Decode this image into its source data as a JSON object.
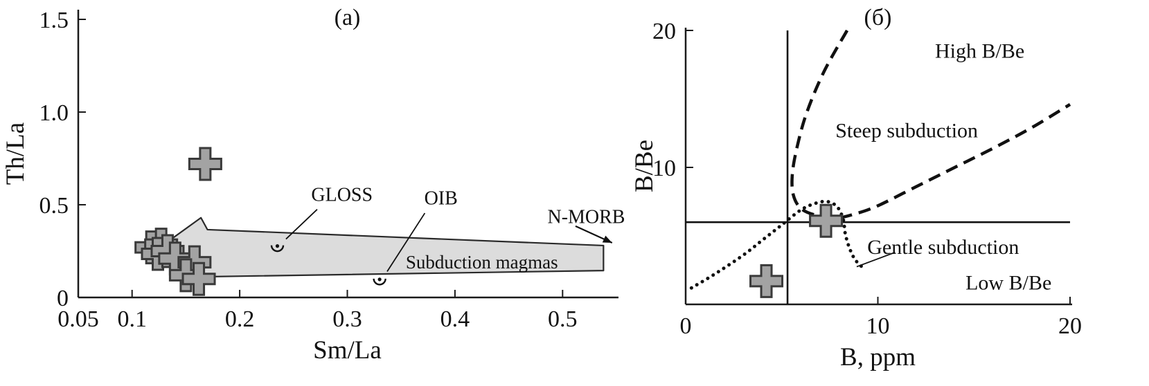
{
  "colors": {
    "region_fill": "#dcdcdc",
    "region_stroke": "#2a2a2a",
    "marker_fill": "#a3a3a3",
    "marker_stroke": "#3a3a3a",
    "line": "#1a1a1a"
  },
  "chart_data": [
    {
      "id": "a",
      "type": "scatter",
      "title": "(a)",
      "xlabel": "Sm/La",
      "ylabel": "Th/La",
      "xlim": [
        0.05,
        0.55
      ],
      "ylim": [
        0,
        1.5
      ],
      "grid": false,
      "legend": "none",
      "xticks": [
        {
          "v": 0.05,
          "t": "0.05"
        },
        {
          "v": 0.1,
          "t": "0.1"
        },
        {
          "v": 0.2,
          "t": "0.2"
        },
        {
          "v": 0.3,
          "t": "0.3"
        },
        {
          "v": 0.4,
          "t": "0.4"
        },
        {
          "v": 0.5,
          "t": "0.5"
        }
      ],
      "yticks": [
        {
          "v": 0,
          "t": "0"
        },
        {
          "v": 0.5,
          "t": "0.5"
        },
        {
          "v": 1.0,
          "t": "1.0"
        },
        {
          "v": 1.5,
          "t": "1.5"
        }
      ],
      "region": {
        "label": "Subduction magmas",
        "label_pos": [
          0.425,
          0.19
        ],
        "polygon": [
          [
            0.122,
            0.254
          ],
          [
            0.164,
            0.43
          ],
          [
            0.17,
            0.366
          ],
          [
            0.538,
            0.28
          ],
          [
            0.538,
            0.145
          ],
          [
            0.17,
            0.112
          ],
          [
            0.164,
            0.056
          ]
        ]
      },
      "samples": [
        [
          0.168,
          0.72
        ],
        [
          0.118,
          0.27
        ],
        [
          0.127,
          0.285
        ],
        [
          0.124,
          0.235
        ],
        [
          0.133,
          0.25
        ],
        [
          0.14,
          0.21
        ],
        [
          0.158,
          0.19
        ],
        [
          0.15,
          0.12
        ],
        [
          0.162,
          0.1
        ]
      ],
      "reference_points": [
        {
          "name": "GLOSS",
          "x": 0.235,
          "y": 0.27,
          "label_pos": [
            0.295,
            0.555
          ],
          "leader": [
            [
              0.272,
              0.475
            ],
            [
              0.243,
              0.315
            ]
          ]
        },
        {
          "name": "OIB",
          "x": 0.33,
          "y": 0.09,
          "label_pos": [
            0.387,
            0.535
          ],
          "leader": [
            [
              0.372,
              0.455
            ],
            [
              0.337,
              0.14
            ]
          ]
        }
      ],
      "annotations": [
        {
          "text": "N-MORB",
          "pos": [
            0.522,
            0.435
          ],
          "arrow": [
            [
              0.512,
              0.385
            ],
            [
              0.546,
              0.295
            ]
          ]
        }
      ]
    },
    {
      "id": "b",
      "type": "line",
      "title": "(б)",
      "xlabel": "B, ppm",
      "ylabel": "B/Be",
      "xlim": [
        0,
        20
      ],
      "ylim": [
        0,
        20
      ],
      "grid": false,
      "legend": "none",
      "xticks": [
        {
          "v": 0,
          "t": "0"
        },
        {
          "v": 10,
          "t": "10"
        },
        {
          "v": 20,
          "t": "20"
        }
      ],
      "yticks": [
        {
          "v": 10,
          "t": "10"
        },
        {
          "v": 20,
          "t": "20"
        }
      ],
      "hline": 6,
      "vline": 5.3,
      "series": [
        {
          "name": "steep-subduction-boundary",
          "style": "dashed",
          "points": [
            [
              8.4,
              20
            ],
            [
              7.2,
              17
            ],
            [
              6.3,
              14
            ],
            [
              5.8,
              11.5
            ],
            [
              5.55,
              9.5
            ],
            [
              5.6,
              8
            ],
            [
              6,
              7
            ],
            [
              6.8,
              6.5
            ],
            [
              7.8,
              6.3
            ],
            [
              8.8,
              6.6
            ],
            [
              10,
              7.2
            ],
            [
              12,
              8.6
            ],
            [
              14,
              10
            ],
            [
              16,
              11.4
            ],
            [
              18,
              12.9
            ],
            [
              20,
              14.6
            ]
          ]
        },
        {
          "name": "gentle-subduction-boundary",
          "style": "dotted",
          "points": [
            [
              0.3,
              1.2
            ],
            [
              1.5,
              2.2
            ],
            [
              3,
              3.6
            ],
            [
              4,
              4.7
            ],
            [
              5,
              5.8
            ],
            [
              6,
              6.9
            ],
            [
              6.8,
              7.4
            ],
            [
              7.4,
              7.5
            ],
            [
              7.9,
              7.1
            ],
            [
              8.2,
              6.2
            ],
            [
              8.3,
              5.2
            ],
            [
              8.5,
              4.2
            ],
            [
              8.8,
              3.3
            ],
            [
              9.2,
              2.7
            ]
          ]
        }
      ],
      "samples": [
        [
          7.3,
          6.1
        ],
        [
          4.2,
          1.7
        ]
      ],
      "labels": [
        {
          "text": "High B/Be",
          "pos": [
            15.3,
            18.5
          ]
        },
        {
          "text": "Steep subduction",
          "pos": [
            11.5,
            12.7
          ]
        },
        {
          "text": "Gentle subduction",
          "pos": [
            13.4,
            4.2
          ],
          "leader": [
            [
              10.9,
              3.8
            ],
            [
              8.9,
              2.75
            ]
          ]
        },
        {
          "text": "Low B/Be",
          "pos": [
            16.8,
            1.6
          ]
        }
      ]
    }
  ]
}
